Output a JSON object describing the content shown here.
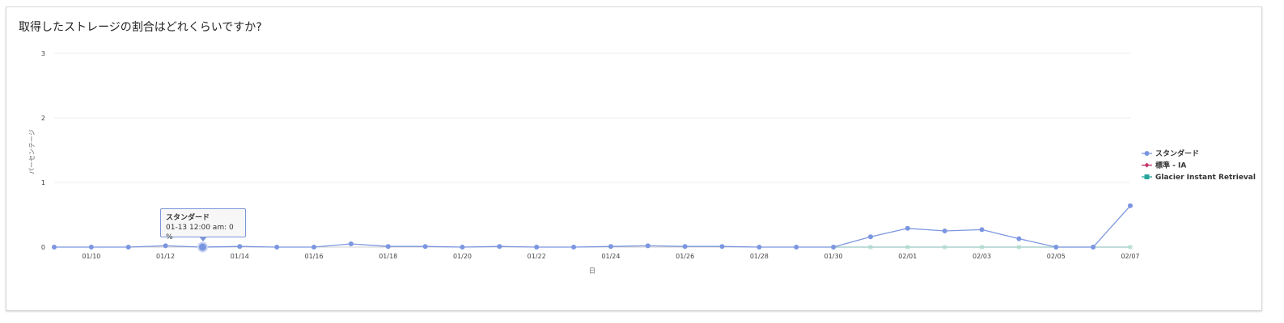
{
  "card": {
    "title": "取得したストレージの割合はどれくらいですか?"
  },
  "tooltip": {
    "series": "スタンダード",
    "text": "01-13 12:00 am: 0 %"
  },
  "chart_data": {
    "type": "line",
    "title": "取得したストレージの割合はどれくらいですか?",
    "xlabel": "日",
    "ylabel": "パーセンテージ",
    "ylim": [
      0,
      3
    ],
    "yticks": [
      0,
      1,
      2,
      3
    ],
    "grid": true,
    "legend": "right",
    "x": [
      "01/09",
      "01/10",
      "01/11",
      "01/12",
      "01/13",
      "01/14",
      "01/15",
      "01/16",
      "01/17",
      "01/18",
      "01/19",
      "01/20",
      "01/21",
      "01/22",
      "01/23",
      "01/24",
      "01/25",
      "01/26",
      "01/27",
      "01/28",
      "01/29",
      "01/30",
      "01/31",
      "02/01",
      "02/02",
      "02/03",
      "02/04",
      "02/05",
      "02/06",
      "02/07"
    ],
    "xticks": [
      "01/10",
      "01/12",
      "01/14",
      "01/16",
      "01/18",
      "01/20",
      "01/22",
      "01/24",
      "01/26",
      "01/28",
      "01/30",
      "02/01",
      "02/03",
      "02/05",
      "02/07"
    ],
    "series": [
      {
        "name": "スタンダード",
        "color": "#7b96e0",
        "marker": "circle",
        "values": [
          0,
          0,
          0,
          0.02,
          0,
          0.01,
          0,
          0,
          0.05,
          0.01,
          0.01,
          0,
          0.01,
          0,
          0,
          0.01,
          0.02,
          0.01,
          0.01,
          0,
          0,
          0,
          0.16,
          0.29,
          0.25,
          0.27,
          0.13,
          0,
          0,
          0.64
        ]
      },
      {
        "name": "標準 - IA",
        "color": "#c2336b",
        "marker": "diamond",
        "values": [
          null,
          null,
          null,
          null,
          null,
          null,
          null,
          null,
          null,
          null,
          null,
          null,
          null,
          null,
          null,
          null,
          null,
          null,
          null,
          null,
          null,
          null,
          null,
          null,
          null,
          null,
          null,
          null,
          null,
          null
        ]
      },
      {
        "name": "Glacier Instant Retrieval",
        "color": "#26a69a",
        "marker": "square",
        "values": [
          null,
          null,
          null,
          null,
          null,
          null,
          null,
          null,
          null,
          null,
          null,
          null,
          null,
          null,
          null,
          null,
          null,
          null,
          null,
          null,
          null,
          0,
          0,
          0,
          0,
          0,
          0,
          0,
          0,
          0
        ]
      }
    ]
  }
}
